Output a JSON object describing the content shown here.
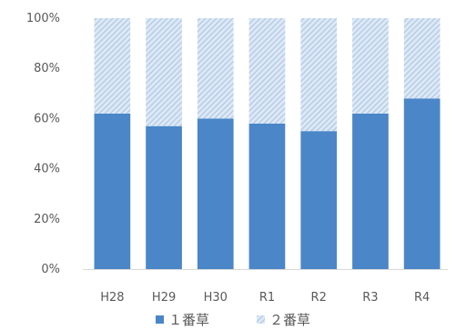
{
  "chart_data": {
    "type": "bar",
    "stacked": true,
    "categories": [
      "H28",
      "H29",
      "H30",
      "R1",
      "R2",
      "R3",
      "R4"
    ],
    "series": [
      {
        "name": "１番草",
        "values": [
          62,
          57,
          60,
          58,
          55,
          62,
          68
        ],
        "color": "#4a86c8",
        "pattern": "solid"
      },
      {
        "name": "２番草",
        "values": [
          38,
          43,
          40,
          42,
          45,
          38,
          32
        ],
        "color": "#cfe0f2",
        "pattern": "hatched"
      }
    ],
    "title": "",
    "xlabel": "",
    "ylabel": "",
    "ylim": [
      0,
      100
    ],
    "yticks": [
      "0%",
      "20%",
      "40%",
      "60%",
      "80%",
      "100%"
    ],
    "grid": false,
    "legend": "bottom"
  }
}
